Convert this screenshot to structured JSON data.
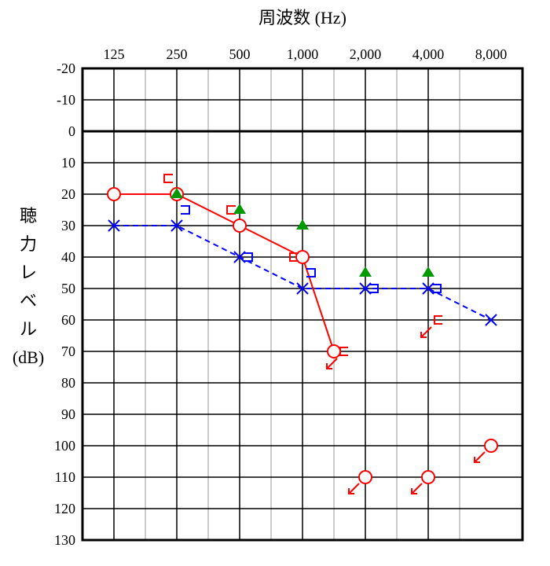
{
  "chart_data": {
    "type": "scatter",
    "title": "周波数 (Hz)",
    "ylabel_chars": [
      "聴",
      "力",
      "レ",
      "ベ",
      "ル",
      "(dB)"
    ],
    "x_categories": [
      "125",
      "250",
      "500",
      "1,000",
      "2,000",
      "4,000",
      "8,000"
    ],
    "y_ticks": [
      "-20",
      "-10",
      "0",
      "10",
      "20",
      "30",
      "40",
      "50",
      "60",
      "70",
      "80",
      "90",
      "100",
      "110",
      "120",
      "130"
    ],
    "ylim": [
      -20,
      130
    ],
    "y_inverted": true,
    "colors": {
      "right": "#ff0000",
      "left": "#0000ff",
      "sound_field": "#009900"
    },
    "series": [
      {
        "marker": "circle",
        "color": "red",
        "line": "solid",
        "points": [
          [
            0,
            20
          ],
          [
            1,
            20
          ],
          [
            2,
            30
          ],
          [
            3,
            40
          ],
          [
            3.5,
            70
          ]
        ],
        "scale_out": [
          [
            4,
            110
          ],
          [
            5,
            110
          ],
          [
            6,
            100
          ]
        ]
      },
      {
        "marker": "cross",
        "color": "blue",
        "line": "dashed",
        "points": [
          [
            0,
            30
          ],
          [
            1,
            30
          ],
          [
            2,
            40
          ],
          [
            3,
            50
          ],
          [
            4,
            50
          ],
          [
            5,
            50
          ],
          [
            6,
            60
          ]
        ]
      },
      {
        "marker": "bracket-left",
        "color": "red",
        "points": [
          [
            1,
            15
          ],
          [
            2,
            25
          ],
          [
            3,
            40
          ]
        ],
        "scale_out": [
          [
            3.5,
            70
          ],
          [
            5,
            60
          ]
        ]
      },
      {
        "marker": "bracket-right",
        "color": "blue",
        "points": [
          [
            1,
            25
          ],
          [
            2,
            40
          ],
          [
            3,
            45
          ],
          [
            4,
            50
          ],
          [
            5,
            50
          ]
        ]
      },
      {
        "marker": "triangle",
        "color": "green",
        "points": [
          [
            1,
            20
          ],
          [
            2,
            25
          ],
          [
            3,
            30
          ],
          [
            4,
            45
          ],
          [
            5,
            45
          ]
        ]
      }
    ]
  }
}
